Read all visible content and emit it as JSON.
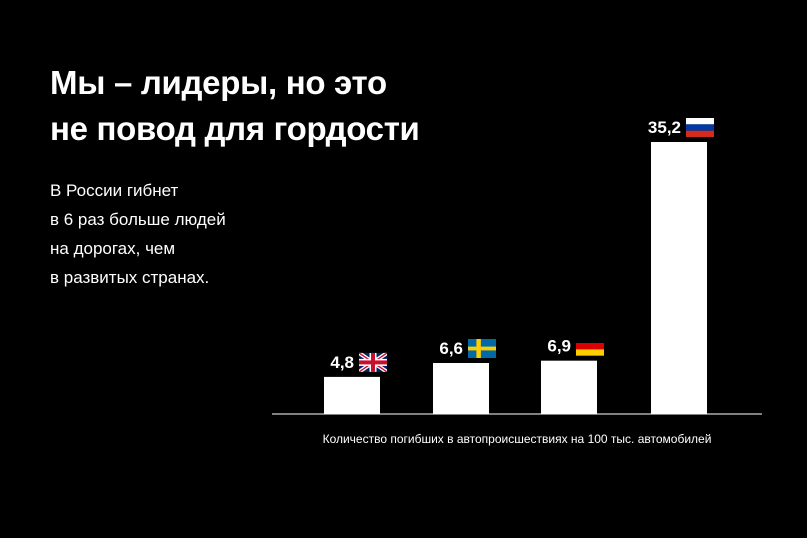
{
  "headline": {
    "lines": [
      "Мы – лидеры, но это",
      "не повод для гордости"
    ]
  },
  "lead": {
    "lines": [
      "В России гибнет",
      "в 6 раз больше людей",
      "на дорогах, чем",
      "в развитых странах."
    ]
  },
  "colors": {
    "background": "#000000",
    "bar": "#ffffff",
    "text": "#ffffff"
  },
  "chart_data": {
    "type": "bar",
    "categories": [
      "uk-flag-icon",
      "sweden-flag-icon",
      "germany-flag-icon",
      "russia-flag-icon"
    ],
    "values": [
      4.8,
      6.6,
      6.9,
      35.2
    ],
    "value_labels": [
      "4,8",
      "6,6",
      "6,9",
      "35,2"
    ],
    "title": "",
    "xlabel": "Количество погибших в автопроисшествиях на 100 тыс. автомобилей",
    "ylabel": "",
    "ylim": [
      0,
      35.2
    ],
    "grid": false,
    "legend": "none"
  }
}
